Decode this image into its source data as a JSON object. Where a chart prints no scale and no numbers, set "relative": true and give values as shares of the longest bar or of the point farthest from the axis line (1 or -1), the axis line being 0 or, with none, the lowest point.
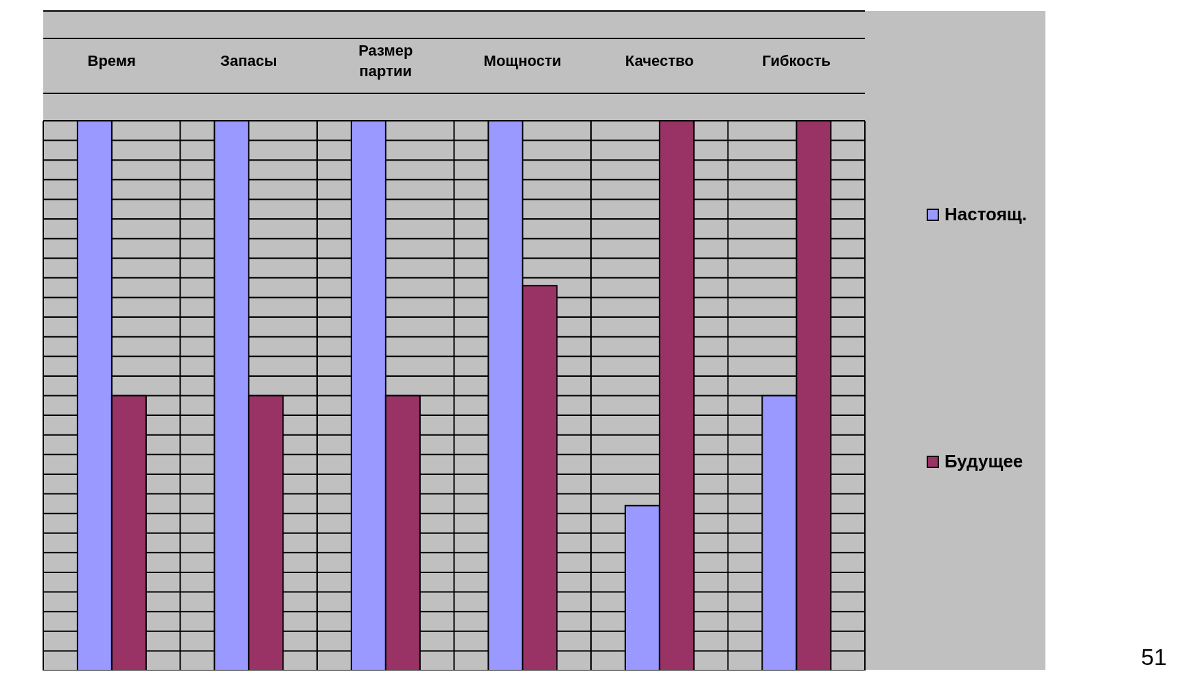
{
  "chart_data": {
    "type": "bar",
    "relative": true,
    "categories": [
      "Время",
      "Запасы",
      "Размер партии",
      "Мощности",
      "Качество",
      "Гибкость"
    ],
    "series": [
      {
        "name": "Настоящ.",
        "color": "#9999ff",
        "values": [
          1,
          1,
          1,
          1,
          0.3,
          0.5
        ]
      },
      {
        "name": "Будущее",
        "color": "#993366",
        "values": [
          0.5,
          0.5,
          0.5,
          0.7,
          1,
          1
        ]
      }
    ],
    "grid": true,
    "legend": "right",
    "annotations": [
      "51"
    ]
  }
}
